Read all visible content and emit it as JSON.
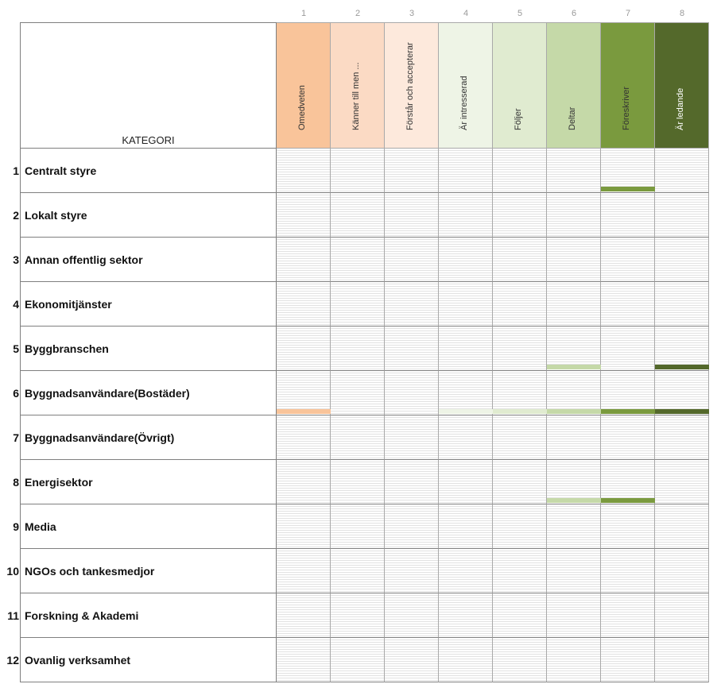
{
  "column_numbers": [
    "1",
    "2",
    "3",
    "4",
    "5",
    "6",
    "7",
    "8"
  ],
  "header": {
    "category_label": "KATEGORI"
  },
  "levels": [
    {
      "label": "Omedveten",
      "color": "#f9c49a"
    },
    {
      "label": "Känner till men ...",
      "color": "#fbdac4"
    },
    {
      "label": "Förstår och accepterar",
      "color": "#fde9dc"
    },
    {
      "label": "Är intresserad",
      "color": "#eef4e6"
    },
    {
      "label": "Följer",
      "color": "#e0ebd0"
    },
    {
      "label": "Deltar",
      "color": "#c5d9a8"
    },
    {
      "label": "Föreskriver",
      "color": "#7a9a3e"
    },
    {
      "label": "Är ledande",
      "color": "#54692b"
    }
  ],
  "categories": [
    {
      "num": "1",
      "label": "Centralt styre"
    },
    {
      "num": "2",
      "label": "Lokalt styre"
    },
    {
      "num": "3",
      "label": "Annan offentlig sektor"
    },
    {
      "num": "4",
      "label": "Ekonomitjänster"
    },
    {
      "num": "5",
      "label": "Byggbranschen"
    },
    {
      "num": "6",
      "label": "Byggnadsanvändare(Bostäder)"
    },
    {
      "num": "7",
      "label": "Byggnadsanvändare(Övrigt)"
    },
    {
      "num": "8",
      "label": "Energisektor"
    },
    {
      "num": "9",
      "label": "Media"
    },
    {
      "num": "10",
      "label": "NGOs och tankesmedjor"
    },
    {
      "num": "11",
      "label": "Forskning & Akademi"
    },
    {
      "num": "12",
      "label": "Ovanlig verksamhet"
    }
  ],
  "marks": [
    {
      "row": 0,
      "col": 6,
      "level": 7
    },
    {
      "row": 4,
      "col": 5,
      "level": 6
    },
    {
      "row": 4,
      "col": 7,
      "level": 8
    },
    {
      "row": 5,
      "col": 0,
      "level": 1
    },
    {
      "row": 5,
      "col": 3,
      "level": 4
    },
    {
      "row": 5,
      "col": 4,
      "level": 5
    },
    {
      "row": 5,
      "col": 5,
      "level": 6
    },
    {
      "row": 5,
      "col": 6,
      "level": 7
    },
    {
      "row": 5,
      "col": 7,
      "level": 8
    },
    {
      "row": 7,
      "col": 5,
      "level": 6
    },
    {
      "row": 7,
      "col": 6,
      "level": 7
    }
  ]
}
